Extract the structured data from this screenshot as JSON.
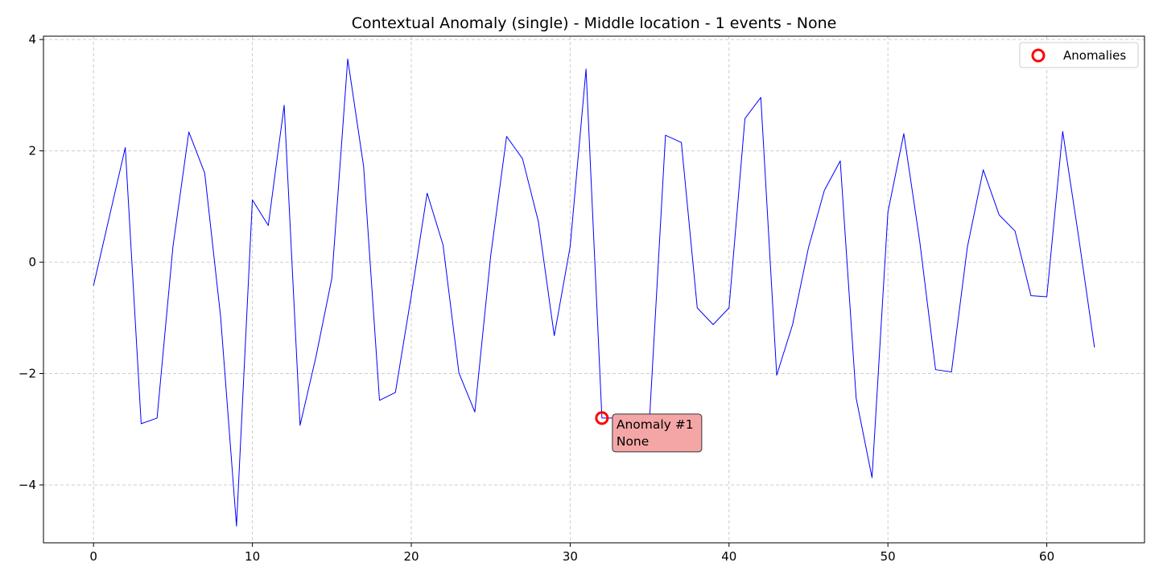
{
  "chart_data": {
    "type": "line",
    "title": "Contextual Anomaly (single) - Middle location - 1 events - None",
    "xlabel": "",
    "ylabel": "",
    "xlim": [
      -3.15,
      66.15
    ],
    "ylim": [
      -5.04,
      4.06
    ],
    "xticks": [
      0,
      10,
      20,
      30,
      40,
      50,
      60
    ],
    "yticks": [
      -4,
      -2,
      0,
      2,
      4
    ],
    "ytick_labels": [
      "−4",
      "−2",
      "0",
      "2",
      "4"
    ],
    "grid": true,
    "legend_position": "top-right",
    "colors": {
      "line": "#0000ff",
      "anomaly_marker": "#ff0000",
      "annotation_fill": "#f4a6a6",
      "grid": "#cccccc"
    },
    "series": [
      {
        "name": "",
        "x": [
          0,
          1,
          2,
          3,
          4,
          5,
          6,
          7,
          8,
          9,
          10,
          11,
          12,
          13,
          14,
          15,
          16,
          17,
          18,
          19,
          20,
          21,
          22,
          23,
          24,
          25,
          26,
          27,
          28,
          29,
          30,
          31,
          32,
          33,
          34,
          35,
          36,
          37,
          38,
          39,
          40,
          41,
          42,
          43,
          44,
          45,
          46,
          47,
          48,
          49,
          50,
          51,
          52,
          53,
          54,
          55,
          56,
          57,
          58,
          59,
          60,
          61,
          62,
          63
        ],
        "y": [
          -0.42,
          0.82,
          2.06,
          -2.9,
          -2.8,
          0.28,
          2.34,
          1.6,
          -0.98,
          -4.74,
          1.12,
          0.66,
          2.82,
          -2.93,
          -1.7,
          -0.29,
          3.65,
          1.72,
          -2.48,
          -2.34,
          -0.6,
          1.24,
          0.31,
          -1.99,
          -2.69,
          0.12,
          2.26,
          1.86,
          0.73,
          -1.32,
          0.28,
          3.47,
          -2.8,
          -2.8,
          -2.8,
          -2.8,
          2.28,
          2.15,
          -0.82,
          -1.12,
          -0.82,
          2.58,
          2.96,
          -2.03,
          -1.12,
          0.26,
          1.29,
          1.82,
          -2.44,
          -3.87,
          0.9,
          2.31,
          0.38,
          -1.93,
          -1.97,
          0.27,
          1.66,
          0.85,
          0.56,
          -0.6,
          -0.62,
          2.35,
          0.46,
          -1.53
        ]
      }
    ],
    "anomalies": [
      {
        "name": "Anomalies",
        "x": 32,
        "y": -2.8,
        "label_line1": "Anomaly #1",
        "label_line2": "None"
      }
    ],
    "legend": {
      "entries": [
        "Anomalies"
      ]
    }
  }
}
